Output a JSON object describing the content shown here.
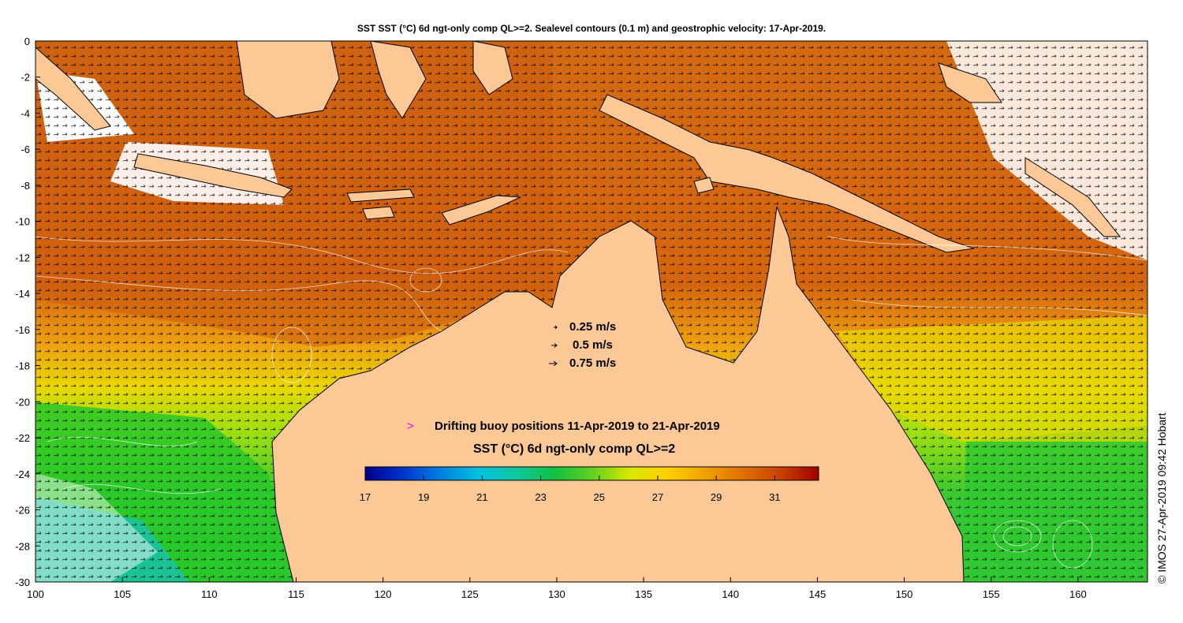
{
  "title": "SST SST (°C) 6d ngt-only comp QL>=2. Sealevel contours (0.1 m) and geostrophic velocity: 17-Apr-2019.",
  "axes": {
    "x_ticks": [
      "100",
      "105",
      "110",
      "115",
      "120",
      "125",
      "130",
      "135",
      "140",
      "145",
      "150",
      "155",
      "160"
    ],
    "y_ticks": [
      "0",
      "-2",
      "-4",
      "-6",
      "-8",
      "-10",
      "-12",
      "-14",
      "-16",
      "-18",
      "-20",
      "-22",
      "-24",
      "-26",
      "-28",
      "-30"
    ],
    "lon_range": [
      100,
      164
    ],
    "lat_range": [
      -30,
      0
    ]
  },
  "velocity_legend": [
    "0.25 m/s",
    "0.5 m/s",
    "0.75 m/s"
  ],
  "buoy_legend": {
    "marker": ">",
    "label": "Drifting buoy positions 11-Apr-2019 to 21-Apr-2019",
    "marker_color": "#ff00ff"
  },
  "colorbar": {
    "title": "SST (°C) 6d ngt-only comp QL>=2",
    "tick_labels": [
      "17",
      "19",
      "21",
      "23",
      "25",
      "27",
      "29",
      "31"
    ],
    "range": [
      17,
      32.5
    ],
    "colors": [
      "#00008b",
      "#0033cc",
      "#0080e0",
      "#00c0e0",
      "#10c8a0",
      "#10c040",
      "#60d020",
      "#d8e800",
      "#ffd000",
      "#f0a000",
      "#e07000",
      "#c84000",
      "#a00000"
    ]
  },
  "credit": "© IMOS 27-Apr-2019 09:42 Hobart",
  "colors": {
    "land": "#fbc896",
    "ocean_warm": "#d9700f",
    "ocean_hot": "#c8500c",
    "ocean_mid": "#f0a010",
    "ocean_yellow": "#e8e800",
    "ocean_green": "#30c830",
    "ocean_cyan": "#20c0c8",
    "cloud": "#ffffff"
  }
}
